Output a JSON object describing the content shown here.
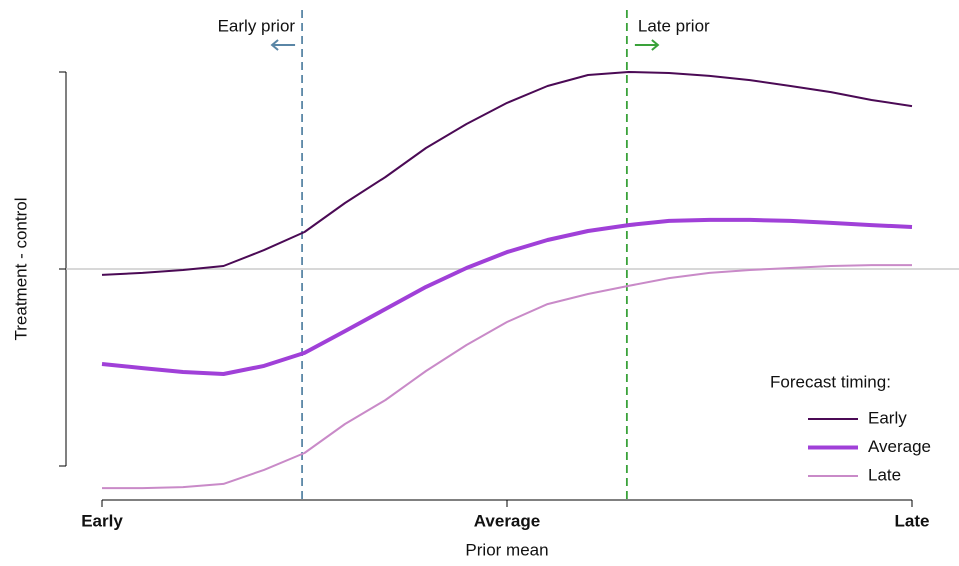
{
  "chart_data": {
    "type": "line",
    "x_label": "Prior mean",
    "y_label": "Treatment - control",
    "x": [
      0,
      0.1,
      0.2,
      0.3,
      0.4,
      0.5,
      0.6,
      0.7,
      0.8,
      0.9,
      1.0,
      1.1,
      1.2,
      1.3,
      1.4,
      1.5,
      1.6,
      1.7,
      1.8,
      1.9,
      2.0
    ],
    "series": [
      {
        "name": "Early",
        "color": "#4b0a55",
        "values": [
          -0.03,
          -0.02,
          -0.005,
          0.015,
          0.096,
          0.188,
          0.335,
          0.467,
          0.614,
          0.736,
          0.843,
          0.929,
          0.985,
          1.0,
          0.995,
          0.98,
          0.959,
          0.929,
          0.898,
          0.858,
          0.827
        ]
      },
      {
        "name": "Average",
        "color": "#a040d8",
        "values": [
          -0.482,
          -0.503,
          -0.523,
          -0.533,
          -0.492,
          -0.426,
          -0.315,
          -0.203,
          -0.091,
          0.005,
          0.086,
          0.147,
          0.193,
          0.223,
          0.244,
          0.249,
          0.249,
          0.244,
          0.234,
          0.223,
          0.213
        ]
      },
      {
        "name": "Late",
        "color": "#c98ac8",
        "values": [
          -1.112,
          -1.112,
          -1.107,
          -1.091,
          -1.02,
          -0.934,
          -0.787,
          -0.665,
          -0.518,
          -0.386,
          -0.269,
          -0.178,
          -0.127,
          -0.086,
          -0.046,
          -0.02,
          -0.005,
          0.005,
          0.015,
          0.02,
          0.02
        ]
      }
    ],
    "xlim": [
      0,
      2
    ],
    "xticks": [
      {
        "value": 0,
        "label": "Early"
      },
      {
        "value": 1,
        "label": "Average"
      },
      {
        "value": 2,
        "label": "Late"
      }
    ],
    "ylim": [
      -1.2,
      1.1
    ],
    "yticks": [
      -1,
      0,
      1
    ],
    "hline": 0,
    "vlines": [
      {
        "x": 0.494,
        "label": "Early prior",
        "color": "#5a86a6",
        "arrow": "left"
      },
      {
        "x": 1.296,
        "label": "Late prior",
        "color": "#3aa23a",
        "arrow": "right"
      }
    ],
    "legend_title": "Forecast timing:",
    "legend": "bottom-right"
  }
}
